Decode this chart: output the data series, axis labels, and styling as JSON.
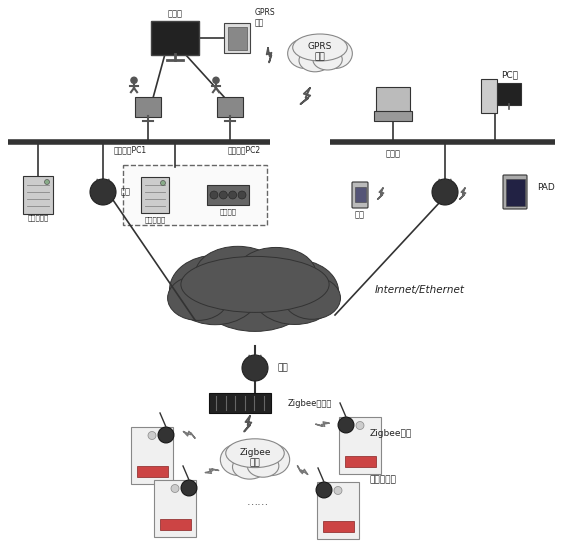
{
  "background_color": "#ffffff",
  "labels": {
    "display": "显示屏",
    "gprs_module": "GPRS\n模块",
    "gprs_network": "GPRS\n网络",
    "control_pc1": "监控中心PC1",
    "control_pc2": "监控中心PC2",
    "net_server": "网络服务器",
    "gateway_left": "网关",
    "data_server": "数据服务器",
    "disk_array": "磁盘阵列",
    "laptop": "笔记本",
    "pc": "PC机",
    "phone": "手机",
    "pad": "PAD",
    "gateway_mid": "网关",
    "zigbee_coord": "Zigbee协调器",
    "zigbee_network": "Zigbee\n网络",
    "zigbee_module": "Zigbee模块",
    "pv_inverter": "光伏逆变器",
    "internet": "Internet/Ethernet",
    "dots": "……"
  }
}
